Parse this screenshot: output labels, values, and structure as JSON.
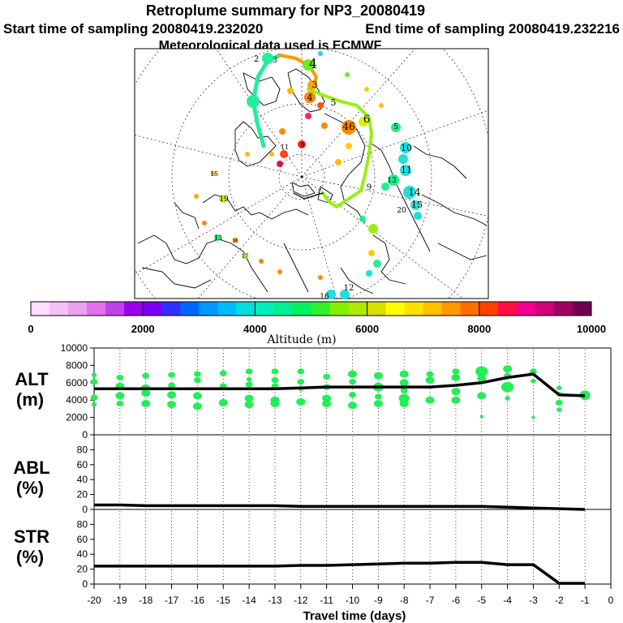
{
  "header": {
    "title": "Retroplume summary for NP3_20080419",
    "start_label": "Start time of sampling 20080419.232020",
    "end_label": "End time of sampling 20080419.232216",
    "met_label": "Meteorological data used is ECMWF"
  },
  "colorbar": {
    "label": "Altitude (m)",
    "ticks": [
      "0",
      "2000",
      "4000",
      "6000",
      "8000",
      "10000"
    ],
    "colors": [
      "#ffe0ff",
      "#f5c0f5",
      "#eba0f0",
      "#e070ee",
      "#c040ea",
      "#9a00ee",
      "#7a00f5",
      "#3030ff",
      "#0066ff",
      "#0099ff",
      "#00bbff",
      "#00dddd",
      "#00eebb",
      "#00f090",
      "#00f060",
      "#30f030",
      "#80f000",
      "#b0e800",
      "#d8e000",
      "#ffff00",
      "#ffe000",
      "#ffc000",
      "#ff9900",
      "#ff7000",
      "#ff4000",
      "#ff1040",
      "#f00090",
      "#d0007a",
      "#a00060",
      "#700050"
    ]
  },
  "map": {
    "labels": [
      {
        "t": "2",
        "c": "#222222"
      },
      {
        "t": "4",
        "c": "#66ee22"
      },
      {
        "t": "3",
        "c": "#ffaa00"
      },
      {
        "t": "3",
        "c": "#ffaa00"
      },
      {
        "t": "4",
        "c": "#ff8800"
      },
      {
        "t": "5",
        "c": "#ddee00"
      },
      {
        "t": "6",
        "c": "#ddee00"
      },
      {
        "t": "46",
        "c": "#ff8800"
      },
      {
        "t": "5",
        "c": "#22ee88"
      },
      {
        "t": "10",
        "c": "#22dddd"
      },
      {
        "t": "11",
        "c": "#22dddd"
      },
      {
        "t": "14",
        "c": "#22dddd"
      },
      {
        "t": "15",
        "c": "#22dddd"
      },
      {
        "t": "9",
        "c": "#66ee22"
      },
      {
        "t": "20",
        "c": "#22ee88"
      },
      {
        "t": "12",
        "c": "#22dddd"
      },
      {
        "t": "16",
        "c": "#22dddd"
      },
      {
        "t": "13",
        "c": "#22dddd"
      },
      {
        "t": "8",
        "c": "#ff2222"
      },
      {
        "t": "11",
        "c": "#ff4422"
      },
      {
        "t": "15",
        "c": "#ffbb00"
      },
      {
        "t": "19",
        "c": "#bbee22"
      },
      {
        "t": "13",
        "c": "#22ee66"
      },
      {
        "t": "17",
        "c": "#88ee22"
      },
      {
        "t": "16",
        "c": "#ffaa00"
      }
    ]
  },
  "panels": {
    "alt": {
      "name": "ALT",
      "unit": "(m)"
    },
    "abl": {
      "name": "ABL",
      "unit": "(%)"
    },
    "str": {
      "name": "STR",
      "unit": "(%)"
    }
  },
  "chart_data": [
    {
      "type": "line",
      "name": "ALT",
      "ylabel": "ALT (m)",
      "xlabel": "Travel time (days)",
      "xlim": [
        -20,
        0
      ],
      "ylim": [
        0,
        10000
      ],
      "yticks": [
        0,
        2000,
        4000,
        6000,
        8000,
        10000
      ],
      "x": [
        -20,
        -19,
        -18,
        -17,
        -16,
        -15,
        -14,
        -13,
        -12,
        -11,
        -10,
        -9,
        -8,
        -7,
        -6,
        -5,
        -4,
        -3,
        -2,
        -1
      ],
      "values": [
        5300,
        5300,
        5300,
        5300,
        5300,
        5300,
        5300,
        5300,
        5400,
        5500,
        5500,
        5500,
        5500,
        5500,
        5700,
        6000,
        6600,
        7000,
        4600,
        4500
      ],
      "scatter": [
        {
          "x": -20,
          "y": 6900,
          "s": 3
        },
        {
          "x": -20,
          "y": 6100,
          "s": 4
        },
        {
          "x": -20,
          "y": 4300,
          "s": 4
        },
        {
          "x": -20,
          "y": 3500,
          "s": 3
        },
        {
          "x": -19,
          "y": 6600,
          "s": 4
        },
        {
          "x": -19,
          "y": 5600,
          "s": 5
        },
        {
          "x": -19,
          "y": 4500,
          "s": 5
        },
        {
          "x": -19,
          "y": 3600,
          "s": 4
        },
        {
          "x": -18,
          "y": 6800,
          "s": 4
        },
        {
          "x": -18,
          "y": 5400,
          "s": 5
        },
        {
          "x": -18,
          "y": 4800,
          "s": 5
        },
        {
          "x": -18,
          "y": 3600,
          "s": 5
        },
        {
          "x": -17,
          "y": 6900,
          "s": 4
        },
        {
          "x": -17,
          "y": 5700,
          "s": 4
        },
        {
          "x": -17,
          "y": 4600,
          "s": 5
        },
        {
          "x": -17,
          "y": 3500,
          "s": 5
        },
        {
          "x": -16,
          "y": 7000,
          "s": 4
        },
        {
          "x": -16,
          "y": 6300,
          "s": 4
        },
        {
          "x": -16,
          "y": 4500,
          "s": 5
        },
        {
          "x": -16,
          "y": 3300,
          "s": 5
        },
        {
          "x": -15,
          "y": 7100,
          "s": 4
        },
        {
          "x": -15,
          "y": 5600,
          "s": 4
        },
        {
          "x": -15,
          "y": 3700,
          "s": 5
        },
        {
          "x": -14,
          "y": 7300,
          "s": 4
        },
        {
          "x": -14,
          "y": 6400,
          "s": 3
        },
        {
          "x": -14,
          "y": 5800,
          "s": 4
        },
        {
          "x": -14,
          "y": 4200,
          "s": 5
        },
        {
          "x": -14,
          "y": 3500,
          "s": 5
        },
        {
          "x": -13,
          "y": 7300,
          "s": 4
        },
        {
          "x": -13,
          "y": 6300,
          "s": 4
        },
        {
          "x": -13,
          "y": 5600,
          "s": 4
        },
        {
          "x": -13,
          "y": 4000,
          "s": 5
        },
        {
          "x": -13,
          "y": 3600,
          "s": 5
        },
        {
          "x": -12,
          "y": 7300,
          "s": 4
        },
        {
          "x": -12,
          "y": 6100,
          "s": 4
        },
        {
          "x": -12,
          "y": 5300,
          "s": 3
        },
        {
          "x": -12,
          "y": 3800,
          "s": 5
        },
        {
          "x": -11,
          "y": 6700,
          "s": 4
        },
        {
          "x": -11,
          "y": 5500,
          "s": 4
        },
        {
          "x": -11,
          "y": 4200,
          "s": 5
        },
        {
          "x": -11,
          "y": 3600,
          "s": 5
        },
        {
          "x": -10,
          "y": 7000,
          "s": 5
        },
        {
          "x": -10,
          "y": 6100,
          "s": 4
        },
        {
          "x": -10,
          "y": 4600,
          "s": 4
        },
        {
          "x": -10,
          "y": 3400,
          "s": 5
        },
        {
          "x": -9,
          "y": 6800,
          "s": 5
        },
        {
          "x": -9,
          "y": 5500,
          "s": 6
        },
        {
          "x": -9,
          "y": 4400,
          "s": 4
        },
        {
          "x": -9,
          "y": 3600,
          "s": 5
        },
        {
          "x": -8,
          "y": 7000,
          "s": 5
        },
        {
          "x": -8,
          "y": 6000,
          "s": 5
        },
        {
          "x": -8,
          "y": 5100,
          "s": 4
        },
        {
          "x": -8,
          "y": 4200,
          "s": 6
        },
        {
          "x": -8,
          "y": 3600,
          "s": 5
        },
        {
          "x": -7,
          "y": 7000,
          "s": 4
        },
        {
          "x": -7,
          "y": 6300,
          "s": 5
        },
        {
          "x": -7,
          "y": 4000,
          "s": 5
        },
        {
          "x": -6,
          "y": 7300,
          "s": 4
        },
        {
          "x": -6,
          "y": 6600,
          "s": 5
        },
        {
          "x": -6,
          "y": 5000,
          "s": 5
        },
        {
          "x": -6,
          "y": 4000,
          "s": 5
        },
        {
          "x": -5,
          "y": 7300,
          "s": 7
        },
        {
          "x": -5,
          "y": 6500,
          "s": 5
        },
        {
          "x": -5,
          "y": 4500,
          "s": 5
        },
        {
          "x": -5,
          "y": 2100,
          "s": 2
        },
        {
          "x": -4,
          "y": 7600,
          "s": 5
        },
        {
          "x": -4,
          "y": 6800,
          "s": 4
        },
        {
          "x": -4,
          "y": 5500,
          "s": 7
        },
        {
          "x": -4,
          "y": 4200,
          "s": 3
        },
        {
          "x": -3,
          "y": 7300,
          "s": 4
        },
        {
          "x": -3,
          "y": 6200,
          "s": 3
        },
        {
          "x": -3,
          "y": 2000,
          "s": 2
        },
        {
          "x": -2,
          "y": 5400,
          "s": 3
        },
        {
          "x": -2,
          "y": 4700,
          "s": 3
        },
        {
          "x": -2,
          "y": 3700,
          "s": 4
        },
        {
          "x": -2,
          "y": 2900,
          "s": 3
        },
        {
          "x": -1,
          "y": 4600,
          "s": 6
        },
        {
          "x": -1,
          "y": 4400,
          "s": 5
        }
      ]
    },
    {
      "type": "line",
      "name": "ABL",
      "ylabel": "ABL (%)",
      "xlim": [
        -20,
        0
      ],
      "ylim": [
        0,
        100
      ],
      "yticks": [
        0,
        20,
        40,
        60,
        80
      ],
      "x": [
        -20,
        -19,
        -18,
        -17,
        -16,
        -15,
        -14,
        -13,
        -12,
        -11,
        -10,
        -9,
        -8,
        -7,
        -6,
        -5,
        -4,
        -3,
        -2,
        -1
      ],
      "values": [
        6,
        6,
        5,
        5,
        5,
        5,
        5,
        5,
        4,
        4,
        4,
        4,
        4,
        4,
        4,
        4,
        3,
        2,
        1,
        0
      ]
    },
    {
      "type": "line",
      "name": "STR",
      "ylabel": "STR (%)",
      "xlabel": "Travel time (days)",
      "xlim": [
        -20,
        0
      ],
      "ylim": [
        0,
        100
      ],
      "yticks": [
        0,
        20,
        40,
        60,
        80
      ],
      "xticks": [
        -20,
        -19,
        -18,
        -17,
        -16,
        -15,
        -14,
        -13,
        -12,
        -11,
        -10,
        -9,
        -8,
        -7,
        -6,
        -5,
        -4,
        -3,
        -2,
        -1,
        0
      ],
      "x": [
        -20,
        -19,
        -18,
        -17,
        -16,
        -15,
        -14,
        -13,
        -12,
        -11,
        -10,
        -9,
        -8,
        -7,
        -6,
        -5,
        -4,
        -3,
        -2,
        -1
      ],
      "values": [
        24,
        24,
        24,
        24,
        24,
        24,
        24,
        24,
        25,
        25,
        26,
        27,
        28,
        28,
        29,
        29,
        26,
        26,
        1,
        1
      ]
    }
  ]
}
